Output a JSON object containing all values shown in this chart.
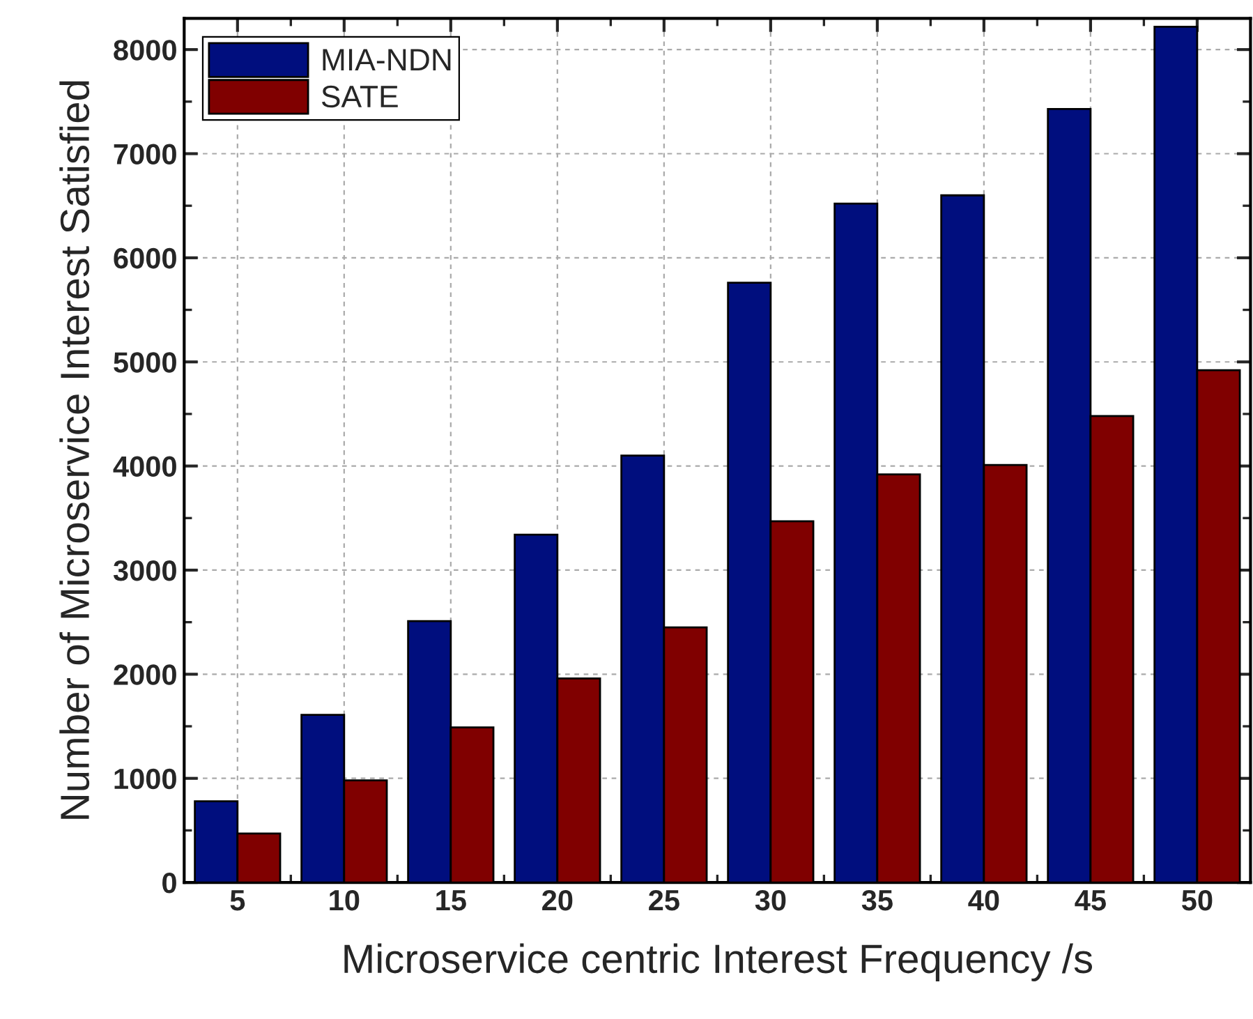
{
  "chart_data": {
    "type": "bar",
    "xlabel": "Microservice centric Interest Frequency /s",
    "ylabel": "Number of Microservice Interest Satisfied",
    "categories": [
      "5",
      "10",
      "15",
      "20",
      "25",
      "30",
      "35",
      "40",
      "45",
      "50"
    ],
    "series": [
      {
        "name": "MIA-NDN",
        "color": "#000e7e",
        "values": [
          780,
          1610,
          2510,
          3340,
          4100,
          5760,
          6520,
          6600,
          7430,
          8220
        ]
      },
      {
        "name": "SATE",
        "color": "#800000",
        "values": [
          470,
          980,
          1490,
          1960,
          2450,
          3470,
          3920,
          4010,
          4480,
          4920
        ]
      }
    ],
    "ylim": [
      0,
      8300
    ],
    "yticks": [
      0,
      1000,
      2000,
      3000,
      4000,
      5000,
      6000,
      7000,
      8000
    ],
    "grid": true,
    "legend": "top left"
  }
}
